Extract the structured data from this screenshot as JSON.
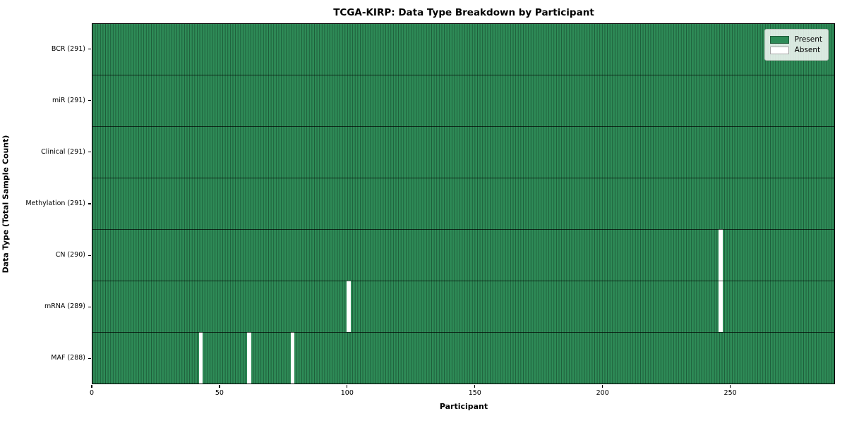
{
  "chart_data": {
    "type": "heatmap",
    "title": "TCGA-KIRP: Data Type Breakdown by Participant",
    "xlabel": "Participant",
    "ylabel": "Data Type (Total Sample Count)",
    "x_ticks": [
      0,
      50,
      100,
      150,
      200,
      250
    ],
    "n_participants": 291,
    "xlim": [
      0,
      291
    ],
    "grid": "horizontal-row-separators",
    "legend_position": "upper-right",
    "rows": [
      {
        "label": "BCR (291)",
        "data_type": "BCR",
        "present_count": 291,
        "absent_participants": []
      },
      {
        "label": "miR (291)",
        "data_type": "miR",
        "present_count": 291,
        "absent_participants": []
      },
      {
        "label": "Clinical (291)",
        "data_type": "Clinical",
        "present_count": 291,
        "absent_participants": []
      },
      {
        "label": "Methylation (291)",
        "data_type": "Methylation",
        "present_count": 291,
        "absent_participants": []
      },
      {
        "label": "CN (290)",
        "data_type": "CN",
        "present_count": 290,
        "absent_participants": [
          246
        ]
      },
      {
        "label": "mRNA (289)",
        "data_type": "mRNA",
        "present_count": 289,
        "absent_participants": [
          100,
          246
        ]
      },
      {
        "label": "MAF (288)",
        "data_type": "MAF",
        "present_count": 288,
        "absent_participants": [
          42,
          61,
          78
        ]
      }
    ],
    "legend": [
      {
        "name": "present",
        "label": "Present",
        "color": "#2e8b57"
      },
      {
        "name": "absent",
        "label": "Absent",
        "color": "#ffffff"
      }
    ],
    "colors": {
      "present": "#2e8b57",
      "absent": "#ffffff",
      "bar_edge": "#1d5c39",
      "row_separator": "#1a1a1a",
      "plot_border": "#000000",
      "legend_background": "#e9efe9",
      "text": "#000000"
    }
  }
}
